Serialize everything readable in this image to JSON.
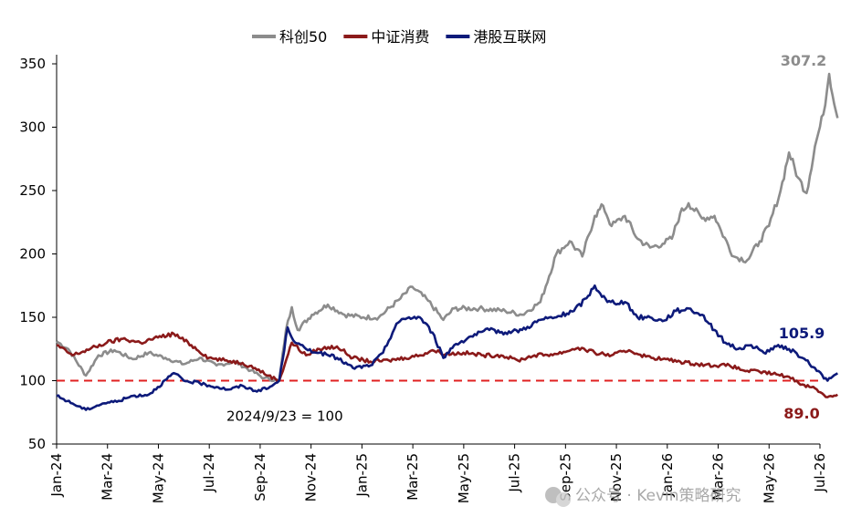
{
  "chart_data": {
    "type": "line",
    "title": "",
    "xlabel": "",
    "ylabel": "",
    "ylim": [
      50,
      350
    ],
    "yticks": [
      50,
      100,
      150,
      200,
      250,
      300,
      350
    ],
    "x_tick_labels": [
      "Jan-24",
      "Mar-24",
      "May-24",
      "Jul-24",
      "Sep-24",
      "Nov-24",
      "Jan-25",
      "Mar-25",
      "May-25",
      "Jul-25",
      "Sep-25",
      "Nov-25",
      "Jan-26",
      "Mar-26",
      "May-26",
      "Jul-26"
    ],
    "legend_position": "top-center",
    "grid": false,
    "baseline": {
      "value": 100,
      "label": "2024/9/23 = 100",
      "color": "#e02020"
    },
    "series": [
      {
        "name": "科创50",
        "color": "#8c8c8c",
        "end_label": "307.2",
        "points": [
          [
            "2024-01-01",
            131
          ],
          [
            "2024-01-15",
            125
          ],
          [
            "2024-02-05",
            104
          ],
          [
            "2024-02-20",
            120
          ],
          [
            "2024-03-10",
            124
          ],
          [
            "2024-04-01",
            117
          ],
          [
            "2024-04-20",
            122
          ],
          [
            "2024-05-10",
            118
          ],
          [
            "2024-06-01",
            113
          ],
          [
            "2024-06-20",
            118
          ],
          [
            "2024-07-10",
            112
          ],
          [
            "2024-08-01",
            115
          ],
          [
            "2024-08-20",
            108
          ],
          [
            "2024-09-05",
            102
          ],
          [
            "2024-09-23",
            100
          ],
          [
            "2024-10-01",
            140
          ],
          [
            "2024-10-08",
            158
          ],
          [
            "2024-10-15",
            140
          ],
          [
            "2024-11-01",
            152
          ],
          [
            "2024-11-20",
            160
          ],
          [
            "2024-12-10",
            152
          ],
          [
            "2025-01-01",
            150
          ],
          [
            "2025-01-20",
            150
          ],
          [
            "2025-02-15",
            165
          ],
          [
            "2025-03-01",
            174
          ],
          [
            "2025-03-20",
            163
          ],
          [
            "2025-04-07",
            148
          ],
          [
            "2025-04-20",
            157
          ],
          [
            "2025-05-20",
            157
          ],
          [
            "2025-06-20",
            155
          ],
          [
            "2025-07-10",
            152
          ],
          [
            "2025-08-01",
            162
          ],
          [
            "2025-08-20",
            200
          ],
          [
            "2025-09-05",
            210
          ],
          [
            "2025-09-20",
            198
          ],
          [
            "2025-10-05",
            230
          ],
          [
            "2025-10-15",
            238
          ],
          [
            "2025-10-25",
            222
          ],
          [
            "2025-11-10",
            230
          ],
          [
            "2025-11-25",
            212
          ],
          [
            "2025-12-10",
            205
          ],
          [
            "2025-12-25",
            208
          ],
          [
            "2026-01-05",
            212
          ],
          [
            "2026-01-15",
            232
          ],
          [
            "2026-01-25",
            240
          ],
          [
            "2026-02-10",
            228
          ],
          [
            "2026-02-25",
            230
          ],
          [
            "2026-03-05",
            218
          ],
          [
            "2026-03-20",
            198
          ],
          [
            "2026-04-05",
            195
          ],
          [
            "2026-04-20",
            210
          ],
          [
            "2026-05-01",
            222
          ],
          [
            "2026-05-15",
            250
          ],
          [
            "2026-05-25",
            280
          ],
          [
            "2026-06-05",
            260
          ],
          [
            "2026-06-15",
            248
          ],
          [
            "2026-06-25",
            285
          ],
          [
            "2026-07-05",
            310
          ],
          [
            "2026-07-12",
            342
          ],
          [
            "2026-07-22",
            307.2
          ]
        ]
      },
      {
        "name": "中证消费",
        "color": "#8b1a1a",
        "end_label": "89.0",
        "points": [
          [
            "2024-01-01",
            128
          ],
          [
            "2024-01-20",
            120
          ],
          [
            "2024-02-10",
            125
          ],
          [
            "2024-03-01",
            130
          ],
          [
            "2024-03-20",
            133
          ],
          [
            "2024-04-10",
            130
          ],
          [
            "2024-05-01",
            134
          ],
          [
            "2024-05-20",
            137
          ],
          [
            "2024-06-10",
            128
          ],
          [
            "2024-07-01",
            118
          ],
          [
            "2024-07-20",
            116
          ],
          [
            "2024-08-10",
            114
          ],
          [
            "2024-08-25",
            110
          ],
          [
            "2024-09-10",
            104
          ],
          [
            "2024-09-23",
            100
          ],
          [
            "2024-10-08",
            130
          ],
          [
            "2024-10-25",
            120
          ],
          [
            "2024-11-10",
            125
          ],
          [
            "2024-12-01",
            127
          ],
          [
            "2024-12-20",
            118
          ],
          [
            "2025-01-10",
            115
          ],
          [
            "2025-02-01",
            116
          ],
          [
            "2025-02-20",
            118
          ],
          [
            "2025-03-10",
            120
          ],
          [
            "2025-03-25",
            124
          ],
          [
            "2025-04-10",
            121
          ],
          [
            "2025-05-01",
            122
          ],
          [
            "2025-05-25",
            120
          ],
          [
            "2025-06-15",
            120
          ],
          [
            "2025-07-05",
            116
          ],
          [
            "2025-07-25",
            120
          ],
          [
            "2025-08-20",
            121
          ],
          [
            "2025-09-15",
            126
          ],
          [
            "2025-10-05",
            122
          ],
          [
            "2025-10-25",
            120
          ],
          [
            "2025-11-15",
            124
          ],
          [
            "2025-12-05",
            119
          ],
          [
            "2025-12-25",
            117
          ],
          [
            "2026-01-15",
            115
          ],
          [
            "2026-02-05",
            113
          ],
          [
            "2026-02-25",
            112
          ],
          [
            "2026-03-15",
            112
          ],
          [
            "2026-04-01",
            108
          ],
          [
            "2026-04-20",
            107
          ],
          [
            "2026-05-10",
            105
          ],
          [
            "2026-05-25",
            103
          ],
          [
            "2026-06-10",
            97
          ],
          [
            "2026-06-25",
            94
          ],
          [
            "2026-07-10",
            87
          ],
          [
            "2026-07-22",
            89.0
          ]
        ]
      },
      {
        "name": "港股互联网",
        "color": "#0d1a7a",
        "end_label": "105.9",
        "points": [
          [
            "2024-01-01",
            88
          ],
          [
            "2024-01-20",
            82
          ],
          [
            "2024-02-05",
            77
          ],
          [
            "2024-02-25",
            82
          ],
          [
            "2024-03-15",
            84
          ],
          [
            "2024-04-01",
            88
          ],
          [
            "2024-04-20",
            89
          ],
          [
            "2024-05-01",
            95
          ],
          [
            "2024-05-20",
            106
          ],
          [
            "2024-06-01",
            100
          ],
          [
            "2024-06-20",
            98
          ],
          [
            "2024-07-10",
            95
          ],
          [
            "2024-07-25",
            93
          ],
          [
            "2024-08-10",
            96
          ],
          [
            "2024-08-25",
            92
          ],
          [
            "2024-09-10",
            94
          ],
          [
            "2024-09-23",
            100
          ],
          [
            "2024-10-03",
            142
          ],
          [
            "2024-10-12",
            130
          ],
          [
            "2024-10-25",
            125
          ],
          [
            "2024-11-10",
            122
          ],
          [
            "2024-12-01",
            118
          ],
          [
            "2024-12-20",
            110
          ],
          [
            "2025-01-10",
            112
          ],
          [
            "2025-01-25",
            122
          ],
          [
            "2025-02-10",
            145
          ],
          [
            "2025-02-25",
            150
          ],
          [
            "2025-03-10",
            150
          ],
          [
            "2025-03-25",
            138
          ],
          [
            "2025-04-07",
            118
          ],
          [
            "2025-04-20",
            128
          ],
          [
            "2025-05-10",
            135
          ],
          [
            "2025-06-01",
            140
          ],
          [
            "2025-06-20",
            138
          ],
          [
            "2025-07-10",
            140
          ],
          [
            "2025-08-01",
            148
          ],
          [
            "2025-08-20",
            150
          ],
          [
            "2025-09-10",
            155
          ],
          [
            "2025-09-25",
            165
          ],
          [
            "2025-10-05",
            175
          ],
          [
            "2025-10-20",
            162
          ],
          [
            "2025-11-10",
            162
          ],
          [
            "2025-11-25",
            150
          ],
          [
            "2025-12-10",
            150
          ],
          [
            "2025-12-25",
            147
          ],
          [
            "2026-01-10",
            155
          ],
          [
            "2026-01-25",
            157
          ],
          [
            "2026-02-10",
            152
          ],
          [
            "2026-02-25",
            140
          ],
          [
            "2026-03-10",
            130
          ],
          [
            "2026-03-25",
            125
          ],
          [
            "2026-04-10",
            128
          ],
          [
            "2026-04-25",
            122
          ],
          [
            "2026-05-10",
            127
          ],
          [
            "2026-05-25",
            125
          ],
          [
            "2026-06-10",
            118
          ],
          [
            "2026-06-25",
            110
          ],
          [
            "2026-07-10",
            100
          ],
          [
            "2026-07-22",
            105.9
          ]
        ]
      }
    ]
  },
  "watermark": "公众号 · Kevin策略研究"
}
